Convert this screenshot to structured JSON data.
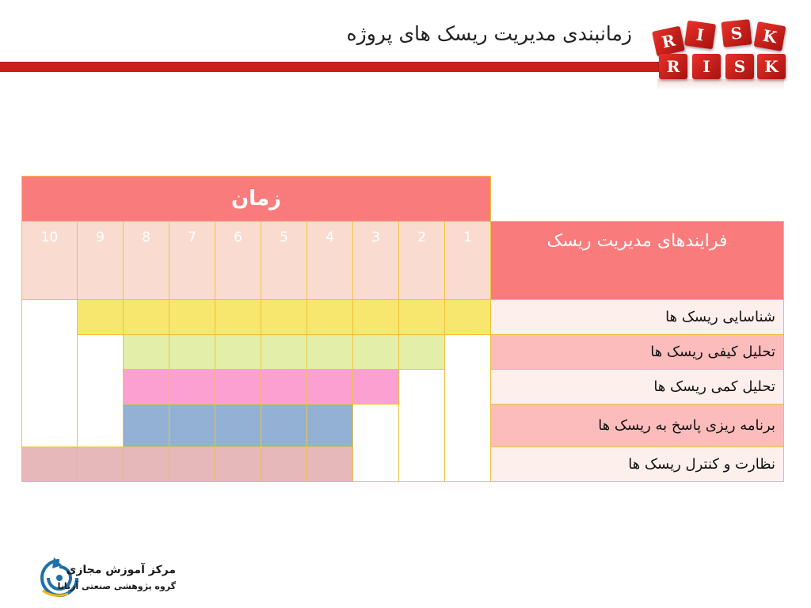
{
  "slide": {
    "title": "زمانبندی مدیریت ریسک های پروژه"
  },
  "logo_dice": {
    "top_letters": [
      "R",
      "I",
      "S",
      "K"
    ],
    "bottom_letters": [
      "R",
      "I",
      "S",
      "K"
    ]
  },
  "table": {
    "time_header": "زمان",
    "process_header": "فرایندهای مدیریت ریسک",
    "periods": [
      "10",
      "9",
      "8",
      "7",
      "6",
      "5",
      "4",
      "3",
      "2",
      "1"
    ],
    "processes": [
      {
        "label": "شناسایی ریسک ها"
      },
      {
        "label": "تحلیل کیفی ریسک ها"
      },
      {
        "label": "تحلیل کمی ریسک ها"
      },
      {
        "label": "برنامه ریزی پاسخ به ریسک ها"
      },
      {
        "label": "نظارت و کنترل ریسک ها"
      }
    ]
  },
  "colors": {
    "header": "#fa7b7b",
    "accent_bar": "#c8201a",
    "identification": "#f8e76e",
    "qualitative": "#e3eea8",
    "quantitative": "#fca0d2",
    "response_planning": "#93b1d5",
    "monitoring": "#e6b8b9"
  },
  "footer_logo": {
    "line1": "مرکز آموزش مجازی",
    "line2": "گروه پژوهشی صنعتی آریانا"
  }
}
